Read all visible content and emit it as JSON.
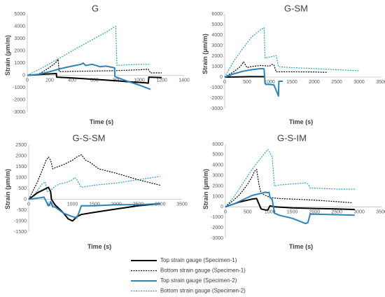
{
  "legend": [
    {
      "label": "Top strain gauge (Specimen-1)",
      "color": "#000000",
      "dash": "",
      "width": 2
    },
    {
      "label": "Bottom strain gauge (Specimen-1)",
      "color": "#000000",
      "dash": "2,1.5",
      "width": 1.2
    },
    {
      "label": "Top strain gauge (Specimen-2)",
      "color": "#2e83b7",
      "dash": "",
      "width": 2
    },
    {
      "label": "Bottom strain gauge (Specimen-2)",
      "color": "#2e9fc7",
      "dash": "2,1.5",
      "width": 1.2
    }
  ],
  "chart_data": [
    {
      "type": "line",
      "title": "G",
      "xlabel": "Time (s)",
      "ylabel": "Strain (µm/m)",
      "xlim": [
        0,
        1400
      ],
      "ylim": [
        -3000,
        5000
      ],
      "xticks": [
        0,
        200,
        400,
        600,
        800,
        1000,
        1200,
        1400
      ],
      "yticks": [
        -3000,
        -2000,
        -1000,
        0,
        1000,
        2000,
        3000,
        4000,
        5000
      ],
      "series": [
        {
          "name": "Top strain gauge (Specimen-1)",
          "x": [
            0,
            80,
            160,
            230,
            260,
            262,
            400,
            600,
            800,
            950,
            1060,
            1080,
            1085,
            1200
          ],
          "y": [
            0,
            40,
            100,
            130,
            140,
            -150,
            -220,
            -330,
            -450,
            -560,
            -620,
            -640,
            -150,
            -180
          ]
        },
        {
          "name": "Bottom strain gauge (Specimen-1)",
          "x": [
            0,
            100,
            150,
            200,
            250,
            275,
            285,
            400,
            600,
            800,
            1000,
            1080,
            1100,
            1200
          ],
          "y": [
            0,
            100,
            350,
            650,
            1000,
            1300,
            300,
            320,
            350,
            380,
            450,
            500,
            200,
            200
          ]
        },
        {
          "name": "Top strain gauge (Specimen-2)",
          "x": [
            0,
            100,
            200,
            300,
            400,
            480,
            500,
            520,
            580,
            650,
            700,
            760,
            780,
            782,
            900,
            1000,
            1100
          ],
          "y": [
            0,
            80,
            300,
            550,
            750,
            900,
            1000,
            800,
            900,
            700,
            750,
            650,
            600,
            -100,
            -500,
            -800,
            -1150
          ]
        },
        {
          "name": "Bottom strain gauge (Specimen-2)",
          "x": [
            0,
            100,
            200,
            300,
            400,
            500,
            600,
            700,
            780,
            790,
            800,
            900,
            1000,
            1100
          ],
          "y": [
            0,
            450,
            950,
            1450,
            2000,
            2500,
            3000,
            3500,
            3950,
            4000,
            800,
            850,
            900,
            900
          ]
        }
      ]
    },
    {
      "type": "line",
      "title": "G-SM",
      "xlabel": "Time (s)",
      "ylabel": "Strain (µm/m)",
      "xlim": [
        0,
        3500
      ],
      "ylim": [
        -3000,
        6000
      ],
      "xticks": [
        0,
        500,
        1000,
        1500,
        2000,
        2500,
        3000,
        3500
      ],
      "yticks": [
        -3000,
        -2000,
        -1000,
        0,
        1000,
        2000,
        3000,
        4000,
        5000,
        6000
      ],
      "series": [
        {
          "name": "Top strain gauge (Specimen-1)",
          "x": [
            0,
            300,
            600,
            900
          ],
          "y": [
            0,
            20,
            40,
            30
          ]
        },
        {
          "name": "Bottom strain gauge (Specimen-1)",
          "x": [
            0,
            200,
            350,
            420,
            500,
            600,
            800,
            1000,
            1050,
            1100,
            1150,
            1300,
            1500,
            2000,
            2300
          ],
          "y": [
            0,
            500,
            1000,
            1450,
            900,
            1000,
            1100,
            1050,
            1200,
            1150,
            500,
            500,
            500,
            480,
            450
          ]
        },
        {
          "name": "Top strain gauge (Specimen-2)",
          "x": [
            0,
            200,
            400,
            600,
            800,
            880,
            900,
            920,
            1000,
            1100,
            1200,
            1210,
            1300
          ],
          "y": [
            0,
            300,
            550,
            700,
            800,
            780,
            -600,
            -700,
            -700,
            -750,
            -1800,
            -400,
            -400
          ]
        },
        {
          "name": "Bottom strain gauge (Specimen-2)",
          "x": [
            0,
            200,
            400,
            600,
            800,
            880,
            900,
            1000,
            1100,
            1150,
            1200,
            1300,
            1500,
            2000,
            2500,
            3000
          ],
          "y": [
            0,
            1500,
            2700,
            3800,
            4500,
            4700,
            1800,
            1900,
            2000,
            2050,
            1000,
            950,
            900,
            800,
            700,
            600
          ]
        }
      ]
    },
    {
      "type": "line",
      "title": "G-S-SM",
      "xlabel": "Time (s)",
      "ylabel": "Strain (µm/m)",
      "xlim": [
        0,
        3500
      ],
      "ylim": [
        -1500,
        2500
      ],
      "xticks": [
        0,
        500,
        1000,
        1500,
        2000,
        2500,
        3000,
        3500
      ],
      "yticks": [
        -1500,
        -1000,
        -500,
        0,
        500,
        1000,
        1500,
        2000,
        2500
      ],
      "series": [
        {
          "name": "Top strain gauge (Specimen-1)",
          "x": [
            0,
            100,
            200,
            300,
            400,
            450,
            500,
            520,
            600,
            700,
            800,
            900,
            1000,
            1050,
            1100,
            1200,
            1500,
            2000,
            2500,
            3000
          ],
          "y": [
            0,
            150,
            300,
            400,
            500,
            550,
            350,
            0,
            -250,
            -450,
            -650,
            -900,
            -1000,
            -900,
            -800,
            -700,
            -600,
            -450,
            -300,
            -200
          ]
        },
        {
          "name": "Bottom strain gauge (Specimen-1)",
          "x": [
            0,
            100,
            200,
            300,
            400,
            450,
            500,
            550,
            600,
            800,
            1000,
            1100,
            1200,
            1300,
            1400,
            1600,
            2000,
            2500,
            3000
          ],
          "y": [
            0,
            400,
            800,
            1300,
            1800,
            1950,
            1800,
            1400,
            1450,
            1600,
            1800,
            1950,
            2050,
            1800,
            1700,
            1400,
            1200,
            900,
            650
          ]
        },
        {
          "name": "Top strain gauge (Specimen-2)",
          "x": [
            0,
            200,
            300,
            350,
            400,
            450,
            480,
            500,
            550,
            600,
            700,
            800,
            1000,
            1100,
            1150,
            1200,
            1300,
            1500,
            2000,
            2500,
            3000
          ],
          "y": [
            0,
            50,
            80,
            100,
            -100,
            -300,
            -250,
            -100,
            -350,
            -350,
            -500,
            -650,
            -800,
            -850,
            -600,
            -300,
            -300,
            -300,
            -250,
            -250,
            -200
          ]
        },
        {
          "name": "Bottom strain gauge (Specimen-2)",
          "x": [
            0,
            100,
            200,
            300,
            380,
            420,
            500,
            600,
            700,
            800,
            900,
            1000,
            1050,
            1100,
            1200,
            1500,
            2000,
            2500,
            3000
          ],
          "y": [
            0,
            150,
            400,
            700,
            800,
            350,
            400,
            600,
            700,
            750,
            800,
            900,
            1000,
            900,
            550,
            650,
            750,
            900,
            1050
          ]
        }
      ]
    },
    {
      "type": "line",
      "title": "G-S-IM",
      "xlabel": "Time (s)",
      "ylabel": "Strain (µm/m)",
      "xlim": [
        0,
        3500
      ],
      "ylim": [
        -3000,
        6000
      ],
      "xticks": [
        0,
        500,
        1000,
        1500,
        2000,
        2500,
        3000,
        3500
      ],
      "yticks": [
        -3000,
        -2000,
        -1000,
        0,
        1000,
        2000,
        3000,
        4000,
        5000,
        6000
      ],
      "series": [
        {
          "name": "Top strain gauge (Specimen-1)",
          "x": [
            0,
            100,
            200,
            300,
            400,
            500,
            600,
            700,
            730,
            800,
            900,
            950,
            1000,
            1100,
            1500,
            2000,
            2500,
            2900
          ],
          "y": [
            0,
            150,
            300,
            450,
            550,
            650,
            750,
            800,
            500,
            -200,
            -300,
            -300,
            100,
            0,
            -100,
            -150,
            -200,
            -250
          ]
        },
        {
          "name": "Bottom strain gauge (Specimen-1)",
          "x": [
            0,
            100,
            200,
            300,
            400,
            500,
            600,
            650,
            700,
            750,
            800,
            900,
            950,
            1000,
            1100,
            1200,
            1500,
            2000,
            2500,
            2850
          ],
          "y": [
            0,
            350,
            700,
            1100,
            1600,
            2200,
            2900,
            3400,
            3600,
            2200,
            1300,
            1100,
            1000,
            900,
            850,
            800,
            750,
            650,
            500,
            400
          ]
        },
        {
          "name": "Top strain gauge (Specimen-2)",
          "x": [
            0,
            200,
            400,
            600,
            800,
            900,
            950,
            980,
            1000,
            1050,
            1100,
            1200,
            1500,
            1800,
            1850,
            1900,
            2000,
            2500,
            2900
          ],
          "y": [
            0,
            300,
            700,
            1100,
            1300,
            1400,
            1350,
            1400,
            900,
            700,
            -600,
            -800,
            -1100,
            -1600,
            -1500,
            -700,
            -700,
            -750,
            -800
          ]
        },
        {
          "name": "Bottom strain gauge (Specimen-2)",
          "x": [
            0,
            200,
            400,
            600,
            800,
            950,
            1000,
            1050,
            1100,
            1200,
            1500,
            1800,
            1850,
            1900,
            2000,
            2500,
            2900
          ],
          "y": [
            0,
            1000,
            2300,
            3600,
            4700,
            5500,
            5200,
            4800,
            2000,
            2100,
            2200,
            2300,
            2200,
            1800,
            1800,
            1700,
            1700
          ]
        }
      ]
    }
  ]
}
